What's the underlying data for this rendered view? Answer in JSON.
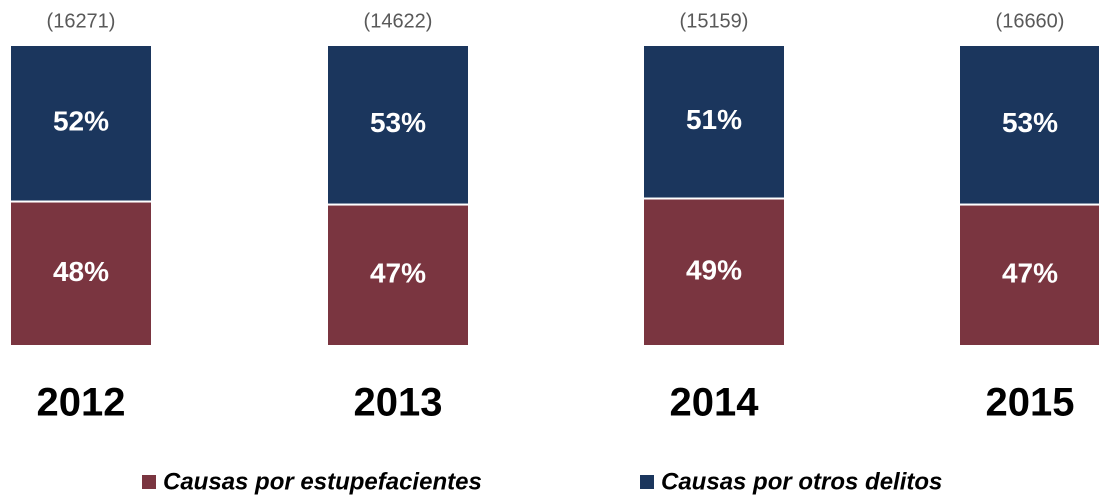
{
  "chart_data": {
    "type": "stacked_bar",
    "categories": [
      "2012",
      "2013",
      "2014",
      "2015"
    ],
    "annotations": [
      "(16271)",
      "(14622)",
      "(15159)",
      "(16660)"
    ],
    "series": [
      {
        "name": "Causas por estupefacientes",
        "color": "#7a3540",
        "values": [
          48,
          47,
          49,
          47
        ],
        "value_labels": [
          "48%",
          "47%",
          "49%",
          "47%"
        ]
      },
      {
        "name": "Causas por otros delitos",
        "color": "#1b365d",
        "values": [
          52,
          53,
          51,
          53
        ],
        "value_labels": [
          "52%",
          "53%",
          "51%",
          "53%"
        ]
      }
    ],
    "ylim": [
      0,
      100
    ],
    "legend": "bottom"
  }
}
